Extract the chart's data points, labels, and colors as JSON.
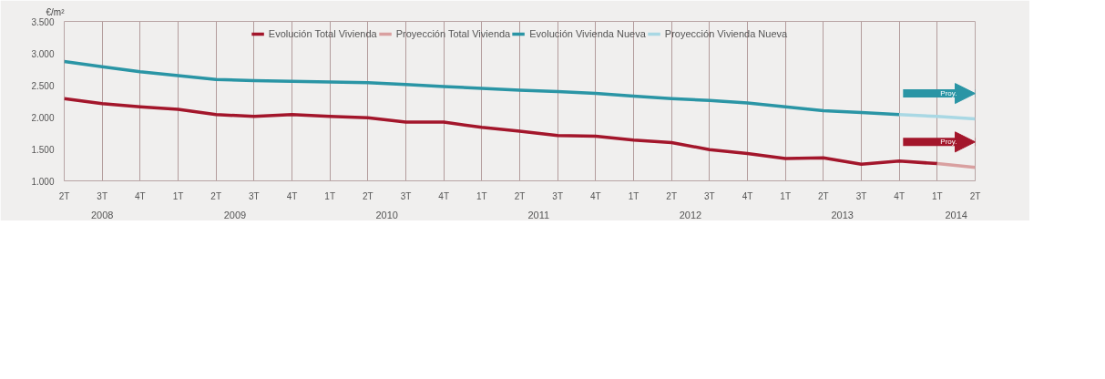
{
  "chart_data": {
    "type": "line",
    "ylabel": "€/m²",
    "categories": [
      "2T",
      "3T",
      "4T",
      "1T",
      "2T",
      "3T",
      "4T",
      "1T",
      "2T",
      "3T",
      "4T",
      "1T",
      "2T",
      "3T",
      "4T",
      "1T",
      "2T",
      "3T",
      "4T",
      "1T",
      "2T",
      "3T",
      "4T",
      "1T",
      "2T"
    ],
    "series": [
      {
        "name": "Evolución Total Vivienda",
        "color": "#a3162b",
        "values": [
          2290,
          2210,
          2160,
          2120,
          2040,
          2010,
          2040,
          2010,
          1990,
          1920,
          1920,
          1840,
          1780,
          1710,
          1700,
          1640,
          1600,
          1490,
          1430,
          1350,
          1360,
          1260,
          1310,
          1270,
          null
        ]
      },
      {
        "name": "Proyección Total Vivienda",
        "color": "#d9a0a0",
        "values": [
          null,
          null,
          null,
          null,
          null,
          null,
          null,
          null,
          null,
          null,
          null,
          null,
          null,
          null,
          null,
          null,
          null,
          null,
          null,
          null,
          null,
          null,
          null,
          1270,
          1210
        ]
      },
      {
        "name": "Evolución Vivienda Nueva",
        "color": "#2a95a5",
        "values": [
          2870,
          2790,
          2710,
          2650,
          2590,
          2570,
          2560,
          2550,
          2540,
          2510,
          2480,
          2450,
          2420,
          2400,
          2370,
          2330,
          2290,
          2260,
          2220,
          2160,
          2100,
          2070,
          2040,
          null,
          null
        ]
      },
      {
        "name": "Proyección Vivienda Nueva",
        "color": "#a9d8e4",
        "values": [
          null,
          null,
          null,
          null,
          null,
          null,
          null,
          null,
          null,
          null,
          null,
          null,
          null,
          null,
          null,
          null,
          null,
          null,
          null,
          null,
          null,
          null,
          2040,
          2010,
          1970
        ]
      }
    ],
    "ylim": [
      1000,
      3500
    ],
    "yticks": [
      {
        "value": 1000,
        "label": "1.000"
      },
      {
        "value": 1500,
        "label": "1.500"
      },
      {
        "value": 2000,
        "label": "2.000"
      },
      {
        "value": 2500,
        "label": "2.500"
      },
      {
        "value": 3000,
        "label": "3.000"
      },
      {
        "value": 3500,
        "label": "3.500"
      }
    ],
    "x2lim": [
      2008.25,
      2014.25
    ],
    "x2ticks": [
      {
        "value": 2008.5,
        "label": "2008"
      },
      {
        "value": 2009.375,
        "label": "2009"
      },
      {
        "value": 2010.375,
        "label": "2010"
      },
      {
        "value": 2011.375,
        "label": "2011"
      },
      {
        "value": 2012.375,
        "label": "2012"
      },
      {
        "value": 2013.375,
        "label": "2013"
      },
      {
        "value": 2014.125,
        "label": "2014"
      }
    ],
    "annotations": [
      "Proy.",
      "Proy."
    ],
    "grid": "x",
    "legend": "top",
    "line_style": "solid"
  }
}
